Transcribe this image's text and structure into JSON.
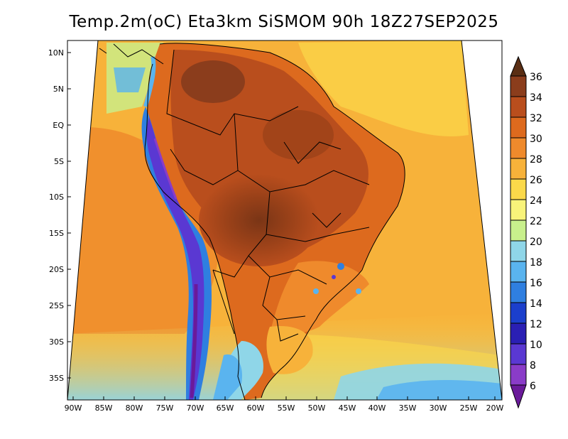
{
  "title": "Temp.2m(oC) Eta3km SiSMOM 90h 18Z27SEP2025",
  "map": {
    "lat_ticks": [
      "10N",
      "5N",
      "EQ",
      "5S",
      "10S",
      "15S",
      "20S",
      "25S",
      "30S",
      "35S"
    ],
    "lon_ticks": [
      "90W",
      "85W",
      "80W",
      "75W",
      "70W",
      "65W",
      "60W",
      "55W",
      "50W",
      "45W",
      "40W",
      "35W",
      "30W",
      "25W",
      "20W"
    ]
  },
  "colorbar": {
    "labels": [
      "36",
      "34",
      "32",
      "30",
      "28",
      "26",
      "24",
      "22",
      "20",
      "18",
      "16",
      "14",
      "12",
      "10",
      "8",
      "6"
    ],
    "colors": [
      "#5a2e14",
      "#8b3d1c",
      "#b94e1d",
      "#dd6a1e",
      "#ef8a2c",
      "#f7b23a",
      "#fbd94a",
      "#f8f37a",
      "#c8f08c",
      "#8fd6e8",
      "#5ab4ef",
      "#2f7fe0",
      "#1b3fcc",
      "#2a1fb4",
      "#5a38d2",
      "#8a3cc8",
      "#6a1a9a"
    ]
  }
}
